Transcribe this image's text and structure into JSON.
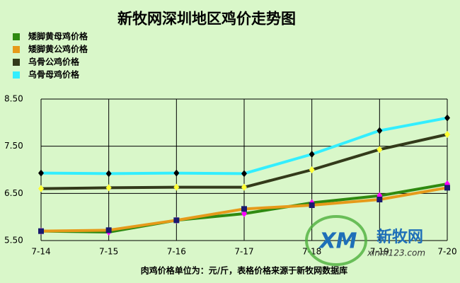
{
  "chart_data": {
    "type": "line",
    "title": "新牧网深圳地区鸡价走势图",
    "categories": [
      "7-14",
      "7-15",
      "7-16",
      "7-17",
      "7-18",
      "7-19",
      "7-20"
    ],
    "series": [
      {
        "name": "矮脚黄母鸡价格",
        "color": "#2f8a10",
        "marker_color": "#ff00ff",
        "marker": "diamond",
        "values": [
          5.7,
          5.68,
          5.93,
          6.07,
          6.3,
          6.45,
          6.7
        ]
      },
      {
        "name": "矮脚黄公鸡价格",
        "color": "#e69a1a",
        "marker_color": "#1a1a6e",
        "marker": "square",
        "values": [
          5.7,
          5.72,
          5.93,
          6.17,
          6.25,
          6.37,
          6.62
        ]
      },
      {
        "name": "乌骨公鸡价格",
        "color": "#333a1a",
        "marker_color": "#ffff33",
        "marker": "diamond",
        "values": [
          6.6,
          6.62,
          6.63,
          6.63,
          7.0,
          7.43,
          7.75
        ]
      },
      {
        "name": "乌骨母鸡价格",
        "color": "#33eeff",
        "marker_color": "#000000",
        "marker": "diamond",
        "values": [
          6.93,
          6.92,
          6.93,
          6.92,
          7.33,
          7.83,
          8.1
        ]
      }
    ],
    "ylim": [
      5.5,
      8.5
    ],
    "yticks": [
      {
        "value": 5.5,
        "label": "5.50"
      },
      {
        "value": 6.5,
        "label": "6.50"
      },
      {
        "value": 7.5,
        "label": "7.50"
      },
      {
        "value": 8.5,
        "label": "8.50"
      }
    ],
    "grid": true,
    "note": "肉鸡价格单位为：元/斤，表格价格来源于新牧网数据库",
    "watermark": {
      "logo": "XM",
      "name": "新牧网",
      "url": "xinm123.com"
    }
  }
}
